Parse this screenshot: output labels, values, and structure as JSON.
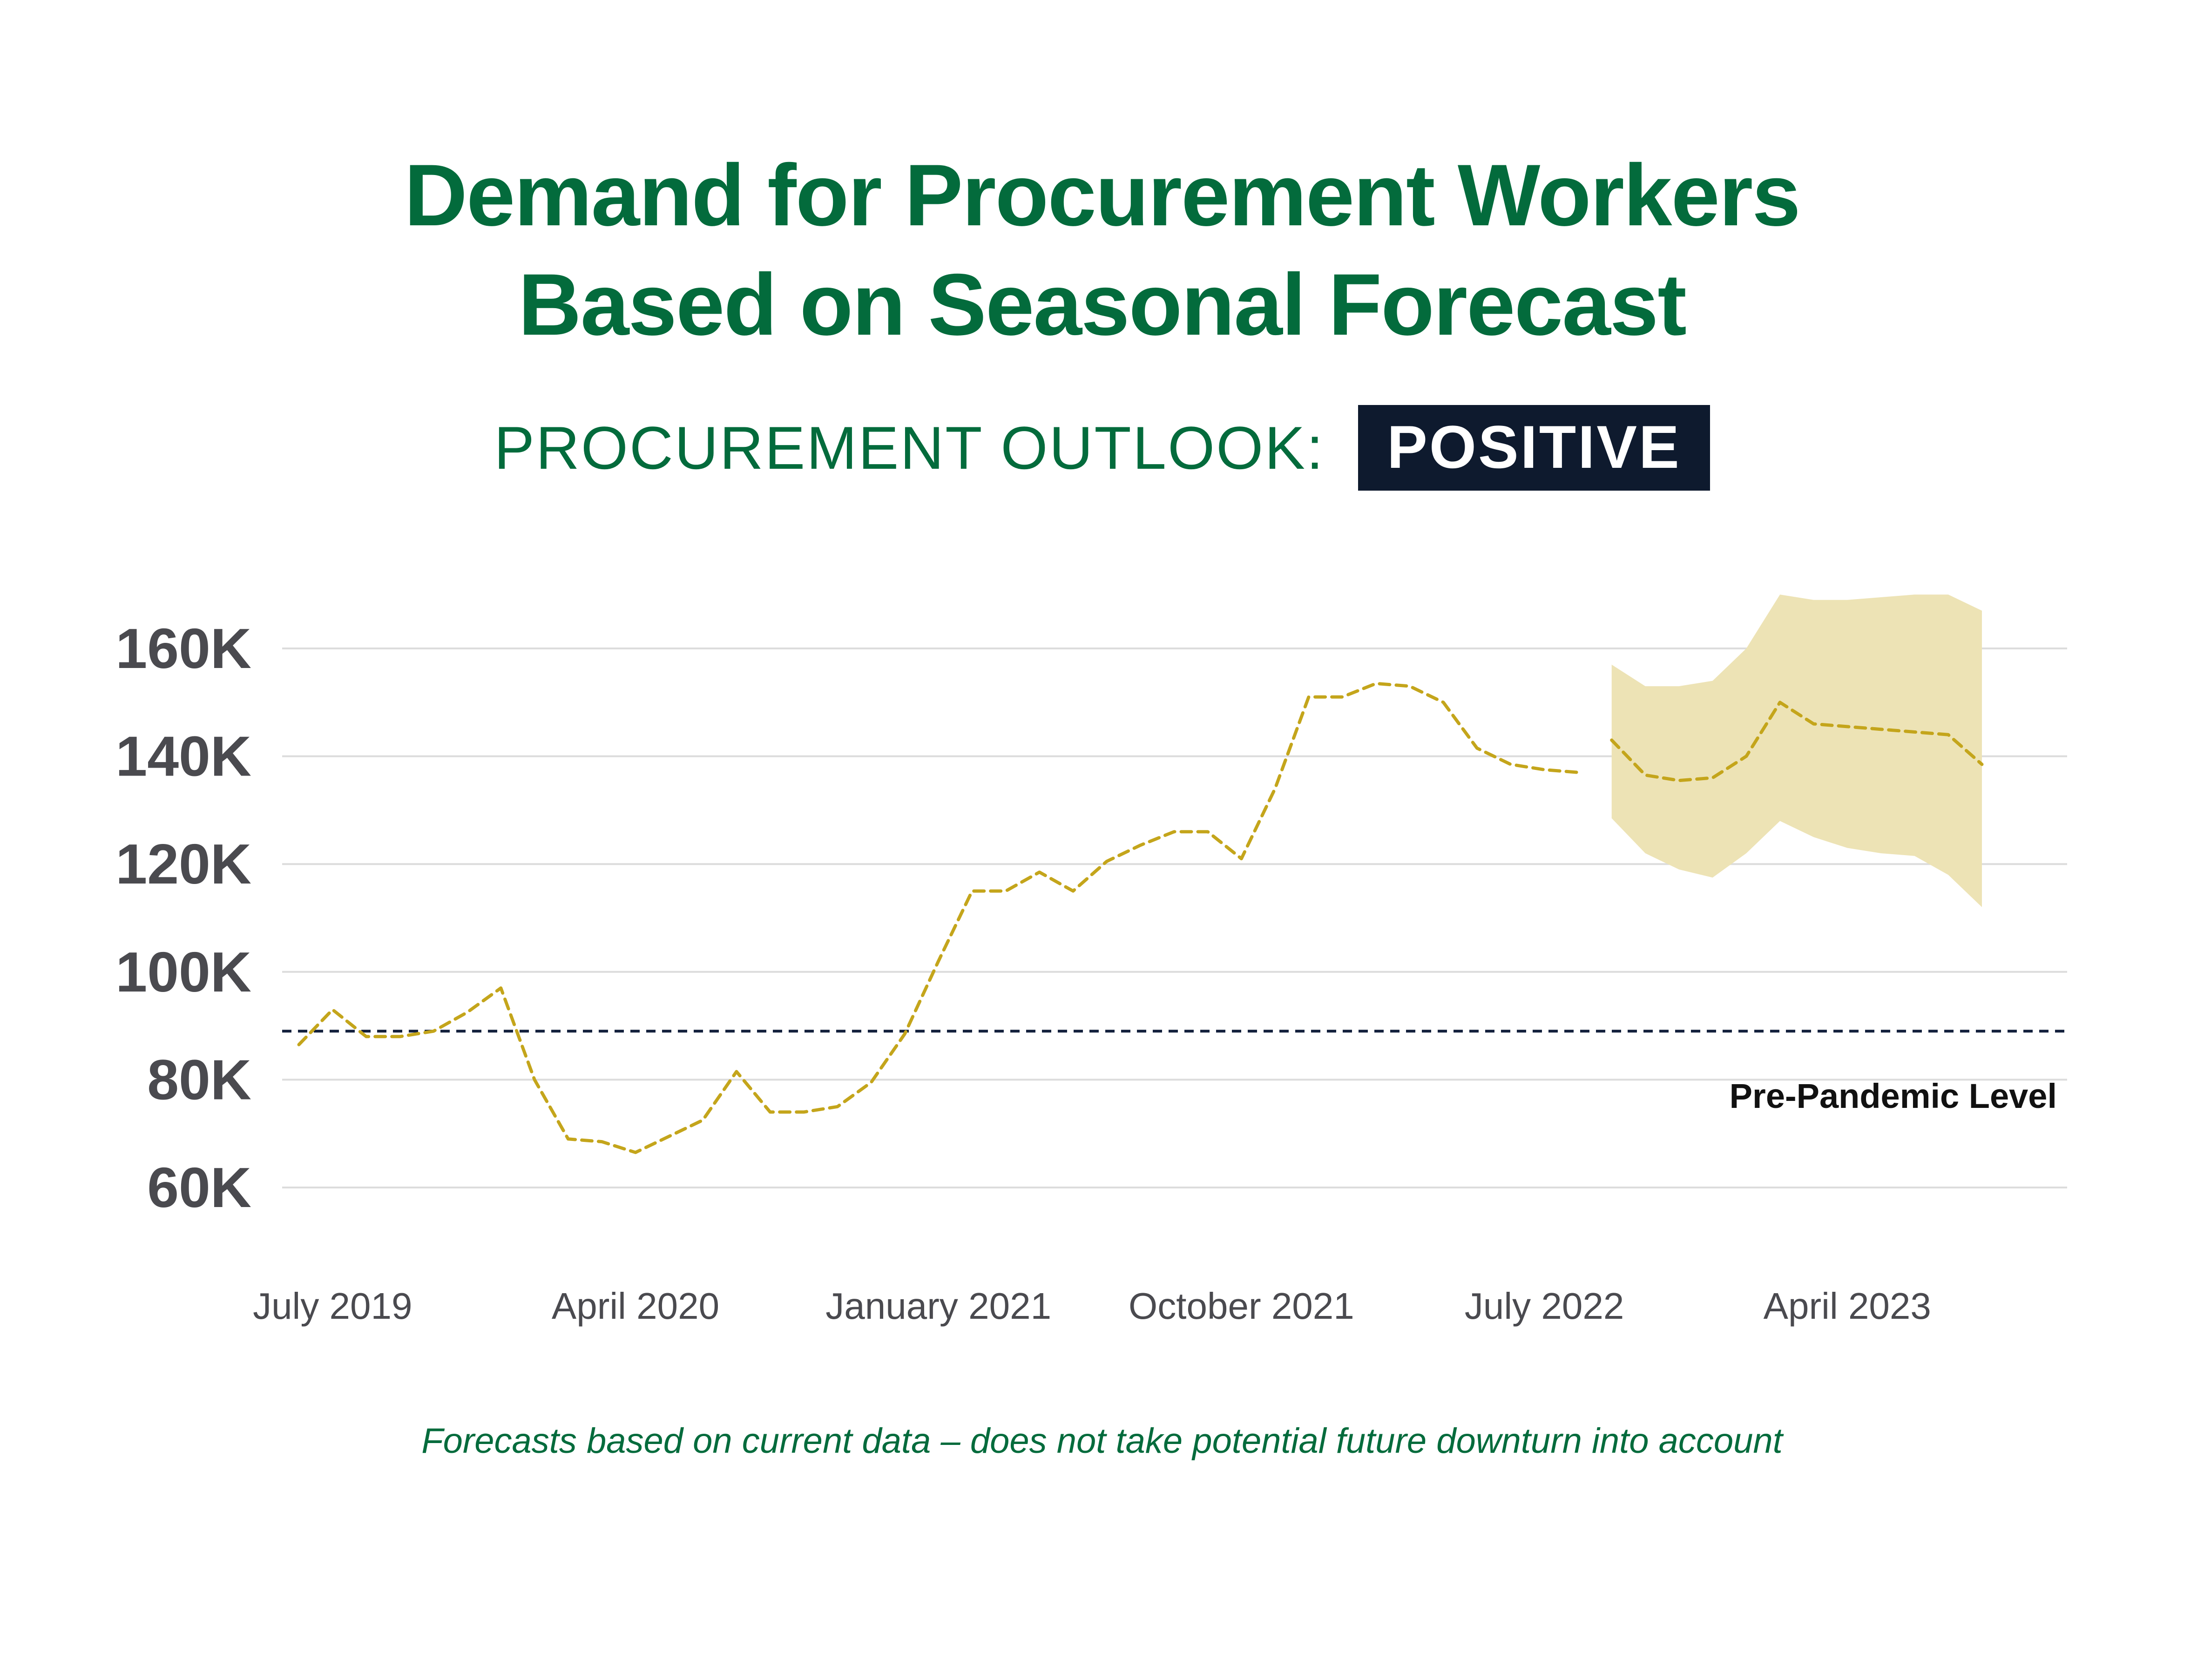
{
  "header": {
    "title_line1": "Demand for Procurement Workers",
    "title_line2": "Based on Seasonal Forecast",
    "outlook_label": "PROCUREMENT OUTLOOK:",
    "outlook_value": "POSITIVE"
  },
  "footnote": "Forecasts based on current data – does not take potential future downturn into account",
  "colors": {
    "title_green": "#036b3c",
    "badge_navy": "#0e1a2e",
    "series_gold": "#c4a51b",
    "band_fill": "#ede3b5",
    "axis_text": "#4a4a4f",
    "grid": "#dcdcdc",
    "reference_line": "#14213d"
  },
  "chart_data": {
    "type": "line",
    "title": "Demand for Procurement Workers Based on Seasonal Forecast",
    "xlabel": "",
    "ylabel": "",
    "ylim": [
      50000,
      170000
    ],
    "grid": true,
    "x_tick_labels": [
      "July 2019",
      "April 2020",
      "January 2021",
      "October 2021",
      "July 2022",
      "April 2023"
    ],
    "y_tick_labels": [
      "160K",
      "140K",
      "120K",
      "100K",
      "80K",
      "60K"
    ],
    "y_ticks": [
      160000,
      140000,
      120000,
      100000,
      80000,
      60000
    ],
    "reference_line": {
      "label": "Pre-Pandemic Level",
      "value": 89000,
      "style": "dashed"
    },
    "series": [
      {
        "kind": "historical",
        "style": "dashed",
        "x": [
          "2019-06",
          "2019-07",
          "2019-08",
          "2019-09",
          "2019-10",
          "2019-11",
          "2019-12",
          "2020-01",
          "2020-02",
          "2020-03",
          "2020-04",
          "2020-05",
          "2020-06",
          "2020-07",
          "2020-08",
          "2020-09",
          "2020-10",
          "2020-11",
          "2020-12",
          "2021-01",
          "2021-02",
          "2021-03",
          "2021-04",
          "2021-05",
          "2021-06",
          "2021-07",
          "2021-08",
          "2021-09",
          "2021-10",
          "2021-11",
          "2021-12",
          "2022-01",
          "2022-02",
          "2022-03",
          "2022-04",
          "2022-05",
          "2022-06",
          "2022-07",
          "2022-08"
        ],
        "values": [
          86500,
          93000,
          88000,
          88000,
          89000,
          92500,
          97000,
          80000,
          69000,
          68500,
          66500,
          69500,
          72500,
          81500,
          74000,
          74000,
          75000,
          79500,
          88500,
          102000,
          115000,
          115000,
          118500,
          115000,
          120500,
          123500,
          126000,
          126000,
          121000,
          134000,
          151000,
          151000,
          153500,
          153000,
          150000,
          141500,
          138500,
          137500,
          137000
        ]
      },
      {
        "kind": "forecast",
        "style": "dashed",
        "x": [
          "2022-09",
          "2022-10",
          "2022-11",
          "2022-12",
          "2023-01",
          "2023-02",
          "2023-03",
          "2023-04",
          "2023-05",
          "2023-06",
          "2023-07",
          "2023-08"
        ],
        "values": [
          143000,
          136500,
          135500,
          136000,
          140000,
          150000,
          146000,
          145500,
          145000,
          144500,
          144000,
          138500
        ],
        "band_upper": [
          157000,
          153000,
          153000,
          154000,
          160000,
          170000,
          169000,
          169000,
          169500,
          170000,
          170000,
          167000
        ],
        "band_lower": [
          128500,
          122000,
          119000,
          117500,
          122000,
          128000,
          125000,
          123000,
          122000,
          121500,
          118000,
          112000
        ]
      }
    ]
  }
}
